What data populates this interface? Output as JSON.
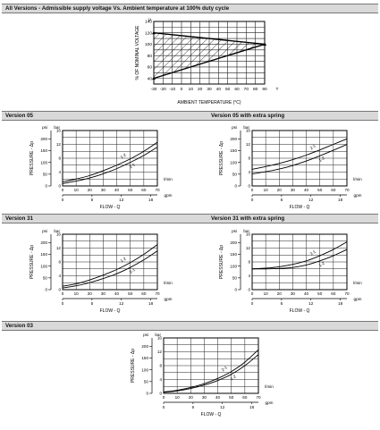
{
  "bands": {
    "top": "All Versions - Admissible supply voltage Vs. Ambient temperature at 100% duty cycle",
    "v05": "Version 05",
    "v05_spring": "Version 05 with extra spring",
    "v31": "Version 31",
    "v31_spring": "Version 31 with extra spring",
    "v03": "Version 03"
  },
  "chart_data": [
    {
      "id": "voltage",
      "type": "line",
      "title": "All Versions - Admissible supply voltage Vs. Ambient temperature at 100% duty cycle",
      "xlabel": "AMBIENT TEMPERATURE (°C)",
      "ylabel": "% OF NOMINAL VOLTAGE",
      "xunit": "T",
      "yunit": "μ",
      "x_ticks": [
        "-30",
        "-20",
        "-10",
        "0",
        "10",
        "20",
        "30",
        "40",
        "50",
        "60",
        "70",
        "80",
        "90"
      ],
      "y_ticks": [
        "40",
        "60",
        "80",
        "100",
        "120",
        "140"
      ],
      "xlim": [
        -30,
        90
      ],
      "ylim": [
        30,
        140
      ],
      "grid": true,
      "series": [
        {
          "values": [
            [
              -30,
              120
            ],
            [
              90,
              100
            ]
          ]
        },
        {
          "values": [
            [
              -30,
              40
            ],
            [
              90,
              100
            ]
          ]
        }
      ],
      "hatched_region": true
    },
    {
      "id": "v05",
      "type": "line",
      "xlabel": "FLOW - Q",
      "ylabel": "PRESSURE - Δp",
      "x_ticks_lpm": [
        "0",
        "10",
        "20",
        "30",
        "40",
        "50",
        "60",
        "70"
      ],
      "x_unit_lpm": "l/min",
      "x_ticks_gpm": [
        "0",
        "6",
        "12",
        "18"
      ],
      "x_unit_gpm": "gpm",
      "y_ticks_bar": [
        "0",
        "4",
        "8",
        "12",
        "16"
      ],
      "y_unit_bar": "bar",
      "y_ticks_psi": [
        "0",
        "50",
        "100",
        "150",
        "200"
      ],
      "y_unit_psi": "psi",
      "xlim": [
        0,
        70
      ],
      "ylim": [
        0,
        16
      ],
      "grid": true,
      "series": [
        {
          "name": "1-2",
          "values": [
            [
              0,
              1.2
            ],
            [
              10,
              2.0
            ],
            [
              20,
              3.0
            ],
            [
              30,
              4.4
            ],
            [
              40,
              6.0
            ],
            [
              50,
              7.8
            ],
            [
              60,
              10.0
            ],
            [
              70,
              12.6
            ]
          ]
        },
        {
          "name": "2-1",
          "values": [
            [
              0,
              0.7
            ],
            [
              10,
              1.4
            ],
            [
              20,
              2.3
            ],
            [
              30,
              3.5
            ],
            [
              40,
              5.0
            ],
            [
              50,
              6.8
            ],
            [
              60,
              8.8
            ],
            [
              70,
              11.2
            ]
          ]
        }
      ]
    },
    {
      "id": "v05_spring",
      "type": "line",
      "xlabel": "FLOW - Q",
      "ylabel": "PRESSURE - Δp",
      "x_ticks_lpm": [
        "0",
        "10",
        "20",
        "30",
        "40",
        "50",
        "60",
        "70"
      ],
      "x_unit_lpm": "l/min",
      "x_ticks_gpm": [
        "0",
        "6",
        "12",
        "18"
      ],
      "x_unit_gpm": "gpm",
      "y_ticks_bar": [
        "0",
        "4",
        "8",
        "12",
        "16"
      ],
      "y_unit_bar": "bar",
      "y_ticks_psi": [
        "0",
        "50",
        "100",
        "150",
        "200"
      ],
      "y_unit_psi": "psi",
      "xlim": [
        0,
        70
      ],
      "ylim": [
        0,
        16
      ],
      "grid": true,
      "series": [
        {
          "name": "2-1",
          "values": [
            [
              0,
              4.8
            ],
            [
              10,
              5.6
            ],
            [
              20,
              6.5
            ],
            [
              30,
              7.6
            ],
            [
              40,
              8.9
            ],
            [
              50,
              10.4
            ],
            [
              60,
              12.0
            ],
            [
              70,
              13.6
            ]
          ]
        },
        {
          "name": "1-2",
          "values": [
            [
              0,
              3.5
            ],
            [
              10,
              4.1
            ],
            [
              20,
              4.9
            ],
            [
              30,
              5.9
            ],
            [
              40,
              7.2
            ],
            [
              50,
              8.7
            ],
            [
              60,
              10.3
            ],
            [
              70,
              12.0
            ]
          ]
        }
      ]
    },
    {
      "id": "v31",
      "type": "line",
      "xlabel": "FLOW - Q",
      "ylabel": "PRESSURE - Δp",
      "x_ticks_lpm": [
        "0",
        "10",
        "20",
        "30",
        "40",
        "50",
        "60",
        "70"
      ],
      "x_unit_lpm": "l/min",
      "x_ticks_gpm": [
        "0",
        "6",
        "12",
        "18"
      ],
      "x_unit_gpm": "gpm",
      "y_ticks_bar": [
        "0",
        "4",
        "8",
        "12",
        "16"
      ],
      "y_unit_bar": "bar",
      "y_ticks_psi": [
        "0",
        "50",
        "100",
        "150",
        "200"
      ],
      "y_unit_psi": "psi",
      "xlim": [
        0,
        70
      ],
      "ylim": [
        0,
        16
      ],
      "grid": true,
      "series": [
        {
          "name": "1-2",
          "values": [
            [
              0,
              1.0
            ],
            [
              10,
              1.7
            ],
            [
              20,
              2.8
            ],
            [
              30,
              4.2
            ],
            [
              40,
              5.8
            ],
            [
              50,
              7.8
            ],
            [
              60,
              10.2
            ],
            [
              70,
              13.0
            ]
          ]
        },
        {
          "name": "2-1",
          "values": [
            [
              0,
              0.5
            ],
            [
              10,
              1.1
            ],
            [
              20,
              2.0
            ],
            [
              30,
              3.2
            ],
            [
              40,
              4.6
            ],
            [
              50,
              6.4
            ],
            [
              60,
              8.6
            ],
            [
              70,
              11.2
            ]
          ]
        }
      ]
    },
    {
      "id": "v31_spring",
      "type": "line",
      "xlabel": "FLOW - Q",
      "ylabel": "PRESSURE - Δp",
      "x_ticks_lpm": [
        "0",
        "10",
        "20",
        "30",
        "40",
        "50",
        "60",
        "70"
      ],
      "x_unit_lpm": "l/min",
      "x_ticks_gpm": [
        "0",
        "6",
        "12",
        "18"
      ],
      "x_unit_gpm": "gpm",
      "y_ticks_bar": [
        "0",
        "4",
        "8",
        "12",
        "16"
      ],
      "y_unit_bar": "bar",
      "y_ticks_psi": [
        "0",
        "50",
        "100",
        "150",
        "200"
      ],
      "y_unit_psi": "psi",
      "xlim": [
        0,
        70
      ],
      "ylim": [
        0,
        16
      ],
      "grid": true,
      "series": [
        {
          "name": "2-1",
          "values": [
            [
              0,
              6.0
            ],
            [
              10,
              6.2
            ],
            [
              20,
              6.6
            ],
            [
              30,
              7.3
            ],
            [
              40,
              8.3
            ],
            [
              50,
              9.8
            ],
            [
              60,
              11.6
            ],
            [
              70,
              13.8
            ]
          ]
        },
        {
          "name": "1-2",
          "values": [
            [
              0,
              6.0
            ],
            [
              10,
              6.0
            ],
            [
              20,
              6.1
            ],
            [
              30,
              6.4
            ],
            [
              40,
              7.1
            ],
            [
              50,
              8.3
            ],
            [
              60,
              9.8
            ],
            [
              70,
              11.6
            ]
          ]
        }
      ]
    },
    {
      "id": "v03",
      "type": "line",
      "xlabel": "FLOW - Q",
      "ylabel": "PRESSURE - Δp",
      "x_ticks_lpm": [
        "0",
        "10",
        "20",
        "30",
        "40",
        "50",
        "60",
        "70"
      ],
      "x_unit_lpm": "l/min",
      "x_ticks_gpm": [
        "0",
        "6",
        "12",
        "18"
      ],
      "x_unit_gpm": "gpm",
      "y_ticks_bar": [
        "0",
        "4",
        "8",
        "12",
        "16"
      ],
      "y_unit_bar": "bar",
      "y_ticks_psi": [
        "0",
        "50",
        "100",
        "150",
        "200"
      ],
      "y_unit_psi": "psi",
      "xlim": [
        0,
        70
      ],
      "ylim": [
        0,
        16
      ],
      "grid": true,
      "series": [
        {
          "name": "2-1",
          "values": [
            [
              0,
              0.4
            ],
            [
              10,
              0.9
            ],
            [
              20,
              1.7
            ],
            [
              30,
              2.8
            ],
            [
              40,
              4.3
            ],
            [
              50,
              6.3
            ],
            [
              60,
              9.0
            ],
            [
              70,
              12.6
            ]
          ]
        },
        {
          "name": "1-2",
          "values": [
            [
              0,
              0.3
            ],
            [
              10,
              0.7
            ],
            [
              20,
              1.4
            ],
            [
              30,
              2.4
            ],
            [
              40,
              3.7
            ],
            [
              50,
              5.5
            ],
            [
              60,
              8.0
            ],
            [
              70,
              11.2
            ]
          ]
        }
      ]
    }
  ]
}
